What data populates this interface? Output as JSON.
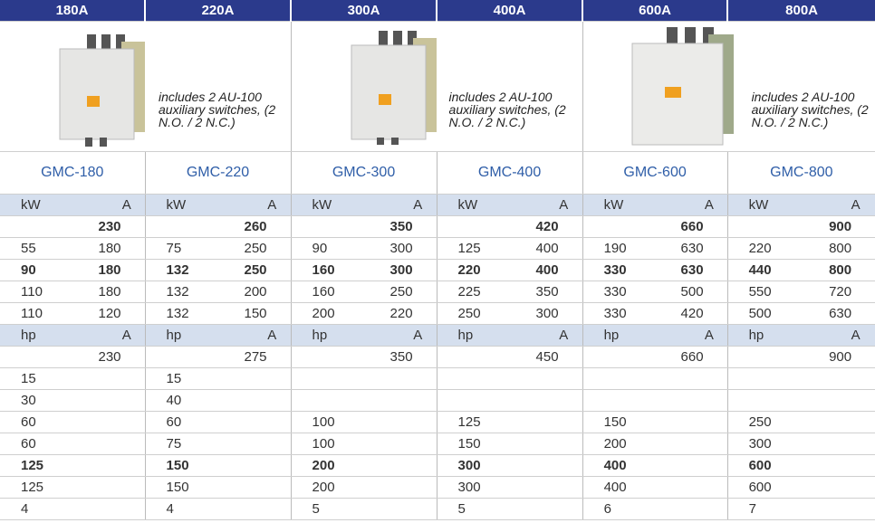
{
  "header": {
    "columns": [
      "180A",
      "220A",
      "300A",
      "400A",
      "600A",
      "800A"
    ]
  },
  "notes": [
    "includes 2 AU-100 auxiliary switches, (2 N.O. / 2 N.C.)",
    "includes 2 AU-100 auxiliary switches, (2 N.O. / 2 N.C.)",
    "includes 2 AU-100 auxiliary switches, (2 N.O. / 2 N.C.)"
  ],
  "models": [
    "GMC-180",
    "GMC-220",
    "GMC-300",
    "GMC-400",
    "GMC-600",
    "GMC-800"
  ],
  "rows": [
    {
      "style": "unit",
      "cells": [
        "kW",
        "A",
        "kW",
        "A",
        "kW",
        "A",
        "kW",
        "A",
        "kW",
        "A",
        "kW",
        "A"
      ]
    },
    {
      "style": "bold",
      "cells": [
        null,
        230,
        null,
        260,
        null,
        350,
        null,
        420,
        null,
        660,
        null,
        900
      ]
    },
    {
      "style": "plain",
      "cells": [
        55,
        180,
        75,
        250,
        90,
        300,
        125,
        400,
        190,
        630,
        220,
        800
      ]
    },
    {
      "style": "bold",
      "cells": [
        90,
        180,
        132,
        250,
        160,
        300,
        220,
        400,
        330,
        630,
        440,
        800
      ]
    },
    {
      "style": "plain",
      "cells": [
        110,
        180,
        132,
        200,
        160,
        250,
        225,
        350,
        330,
        500,
        550,
        720
      ]
    },
    {
      "style": "plain",
      "cells": [
        110,
        120,
        132,
        150,
        200,
        220,
        250,
        300,
        330,
        420,
        500,
        630
      ]
    },
    {
      "style": "unit",
      "cells": [
        "hp",
        "A",
        "hp",
        "A",
        "hp",
        "A",
        "hp",
        "A",
        "hp",
        "A",
        "hp",
        "A"
      ]
    },
    {
      "style": "plain",
      "cells": [
        null,
        230,
        null,
        275,
        null,
        350,
        null,
        450,
        null,
        660,
        null,
        900
      ]
    },
    {
      "style": "plain",
      "cells": [
        15,
        null,
        15,
        null,
        null,
        null,
        null,
        null,
        null,
        null,
        null,
        null
      ]
    },
    {
      "style": "plain",
      "cells": [
        30,
        null,
        40,
        null,
        null,
        null,
        null,
        null,
        null,
        null,
        null,
        null
      ]
    },
    {
      "style": "plain",
      "cells": [
        60,
        null,
        60,
        null,
        100,
        null,
        125,
        null,
        150,
        null,
        250,
        null
      ]
    },
    {
      "style": "plain",
      "cells": [
        60,
        null,
        75,
        null,
        100,
        null,
        150,
        null,
        200,
        null,
        300,
        null
      ]
    },
    {
      "style": "bold",
      "cells": [
        125,
        null,
        150,
        null,
        200,
        null,
        300,
        null,
        400,
        null,
        600,
        null
      ]
    },
    {
      "style": "plain",
      "cells": [
        125,
        null,
        150,
        null,
        200,
        null,
        300,
        null,
        400,
        null,
        600,
        null
      ]
    },
    {
      "style": "plain",
      "cells": [
        4,
        null,
        4,
        null,
        5,
        null,
        5,
        null,
        6,
        null,
        7,
        null
      ]
    }
  ]
}
